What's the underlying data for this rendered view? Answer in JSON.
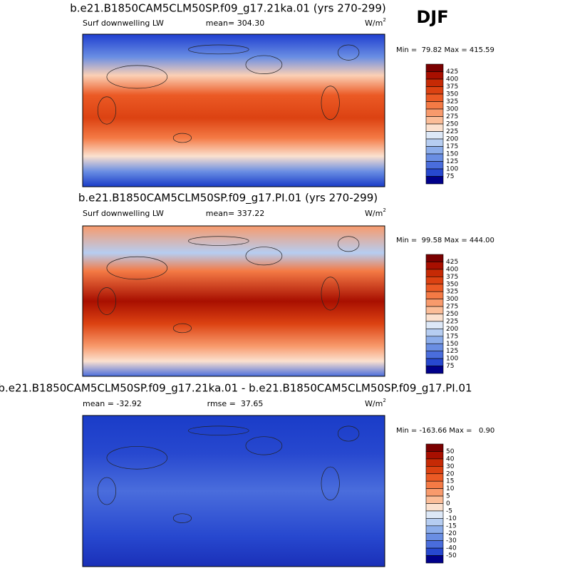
{
  "season": "DJF",
  "panels": [
    {
      "title": "b.e21.B1850CAM5CLM50SP.f09_g17.21ka.01 (yrs 270-299)",
      "left_label": "Surf downwelling LW",
      "center_label": "mean= 304.30",
      "units": {
        "base": "W/m",
        "sup": "2"
      },
      "min_max": "Min =  79.82 Max = 415.59",
      "colorbar": {
        "labels": [
          425,
          400,
          375,
          350,
          325,
          300,
          275,
          250,
          225,
          200,
          175,
          150,
          125,
          100,
          75
        ],
        "colors": [
          "#7a0000",
          "#a80f00",
          "#c62a05",
          "#dc4212",
          "#eb5a25",
          "#f47a45",
          "#f89a6c",
          "#fbbd98",
          "#fbe1cf",
          "#dde8f7",
          "#b6cdf1",
          "#8cadea",
          "#6a8ee3",
          "#4a6ddc",
          "#2748cf",
          "#00008a"
        ]
      }
    },
    {
      "title": "b.e21.B1850CAM5CLM50SP.f09_g17.PI.01 (yrs 270-299)",
      "left_label": "Surf downwelling LW",
      "center_label": "mean= 337.22",
      "units": {
        "base": "W/m",
        "sup": "2"
      },
      "min_max": "Min =  99.58 Max = 444.00",
      "colorbar": {
        "labels": [
          425,
          400,
          375,
          350,
          325,
          300,
          275,
          250,
          225,
          200,
          175,
          150,
          125,
          100,
          75
        ],
        "colors": [
          "#7a0000",
          "#a80f00",
          "#c62a05",
          "#dc4212",
          "#eb5a25",
          "#f47a45",
          "#f89a6c",
          "#fbbd98",
          "#fbe1cf",
          "#dde8f7",
          "#b6cdf1",
          "#8cadea",
          "#6a8ee3",
          "#4a6ddc",
          "#2748cf",
          "#00008a"
        ]
      }
    },
    {
      "title": "b.e21.B1850CAM5CLM50SP.f09_g17.21ka.01 - b.e21.B1850CAM5CLM50SP.f09_g17.PI.01",
      "left_label": "mean = -32.92",
      "center_label": "rmse =  37.65",
      "units": {
        "base": "W/m",
        "sup": "2"
      },
      "min_max": "Min = -163.66 Max =   0.90",
      "colorbar": {
        "labels": [
          50,
          40,
          30,
          20,
          15,
          10,
          5,
          0,
          -5,
          -10,
          -15,
          -20,
          -30,
          -40,
          -50
        ],
        "colors": [
          "#7a0000",
          "#a80f00",
          "#c62a05",
          "#dc4212",
          "#eb5a25",
          "#f47a45",
          "#f89a6c",
          "#fbbd98",
          "#fbe1cf",
          "#dde8f7",
          "#b6cdf1",
          "#8cadea",
          "#6a8ee3",
          "#4a6ddc",
          "#2748cf",
          "#00008a"
        ]
      }
    }
  ]
}
